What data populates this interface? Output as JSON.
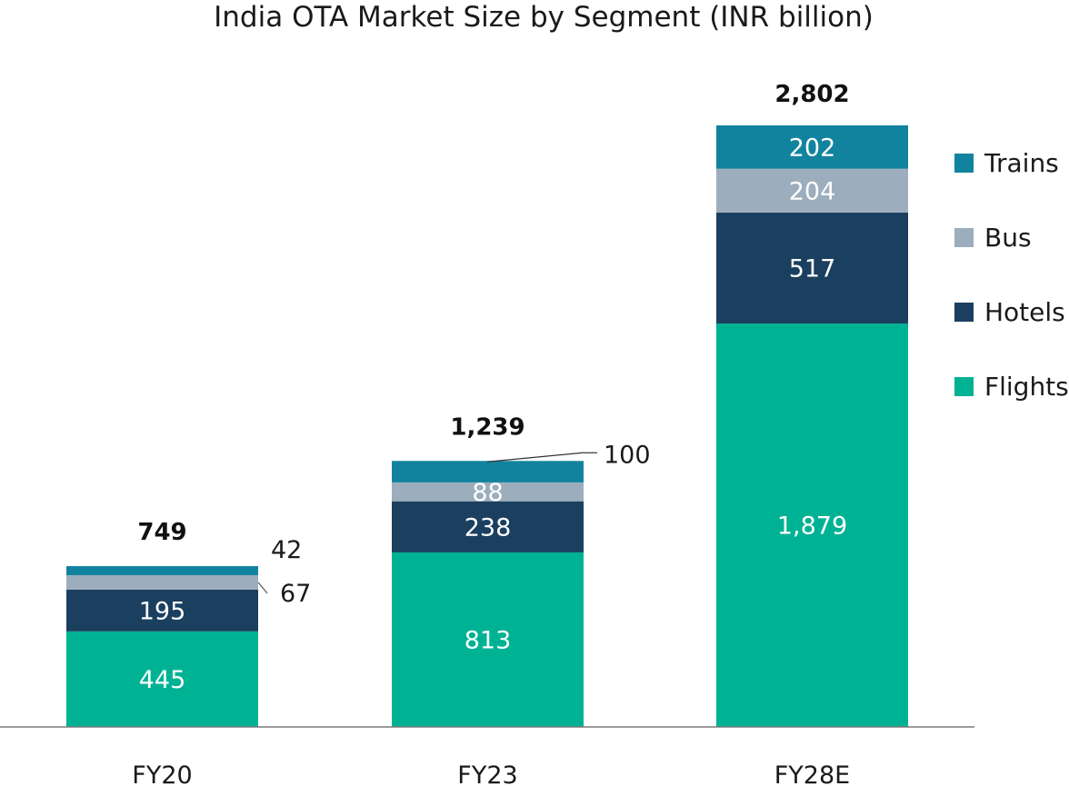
{
  "chart_data": {
    "type": "bar",
    "stacked": true,
    "title": "India OTA Market Size by Segment (INR billion)",
    "xlabel": "",
    "ylabel": "",
    "ylim": [
      0,
      2802
    ],
    "grid": false,
    "legend_position": "right",
    "categories": [
      "FY20",
      "FY23",
      "FY28E"
    ],
    "series": [
      {
        "name": "Flights",
        "color": "#00b294",
        "values": [
          445,
          813,
          1879
        ],
        "labels": [
          "445",
          "813",
          "1,879"
        ]
      },
      {
        "name": "Hotels",
        "color": "#1b3f5f",
        "values": [
          195,
          238,
          517
        ],
        "labels": [
          "195",
          "238",
          "517"
        ]
      },
      {
        "name": "Bus",
        "color": "#9caebd",
        "values": [
          67,
          88,
          204
        ],
        "labels": [
          "67",
          "88",
          "204"
        ]
      },
      {
        "name": "Trains",
        "color": "#12839e",
        "values": [
          42,
          100,
          202
        ],
        "labels": [
          "42",
          "100",
          "202"
        ]
      }
    ],
    "totals": [
      "749",
      "1,239",
      "2,802"
    ]
  }
}
